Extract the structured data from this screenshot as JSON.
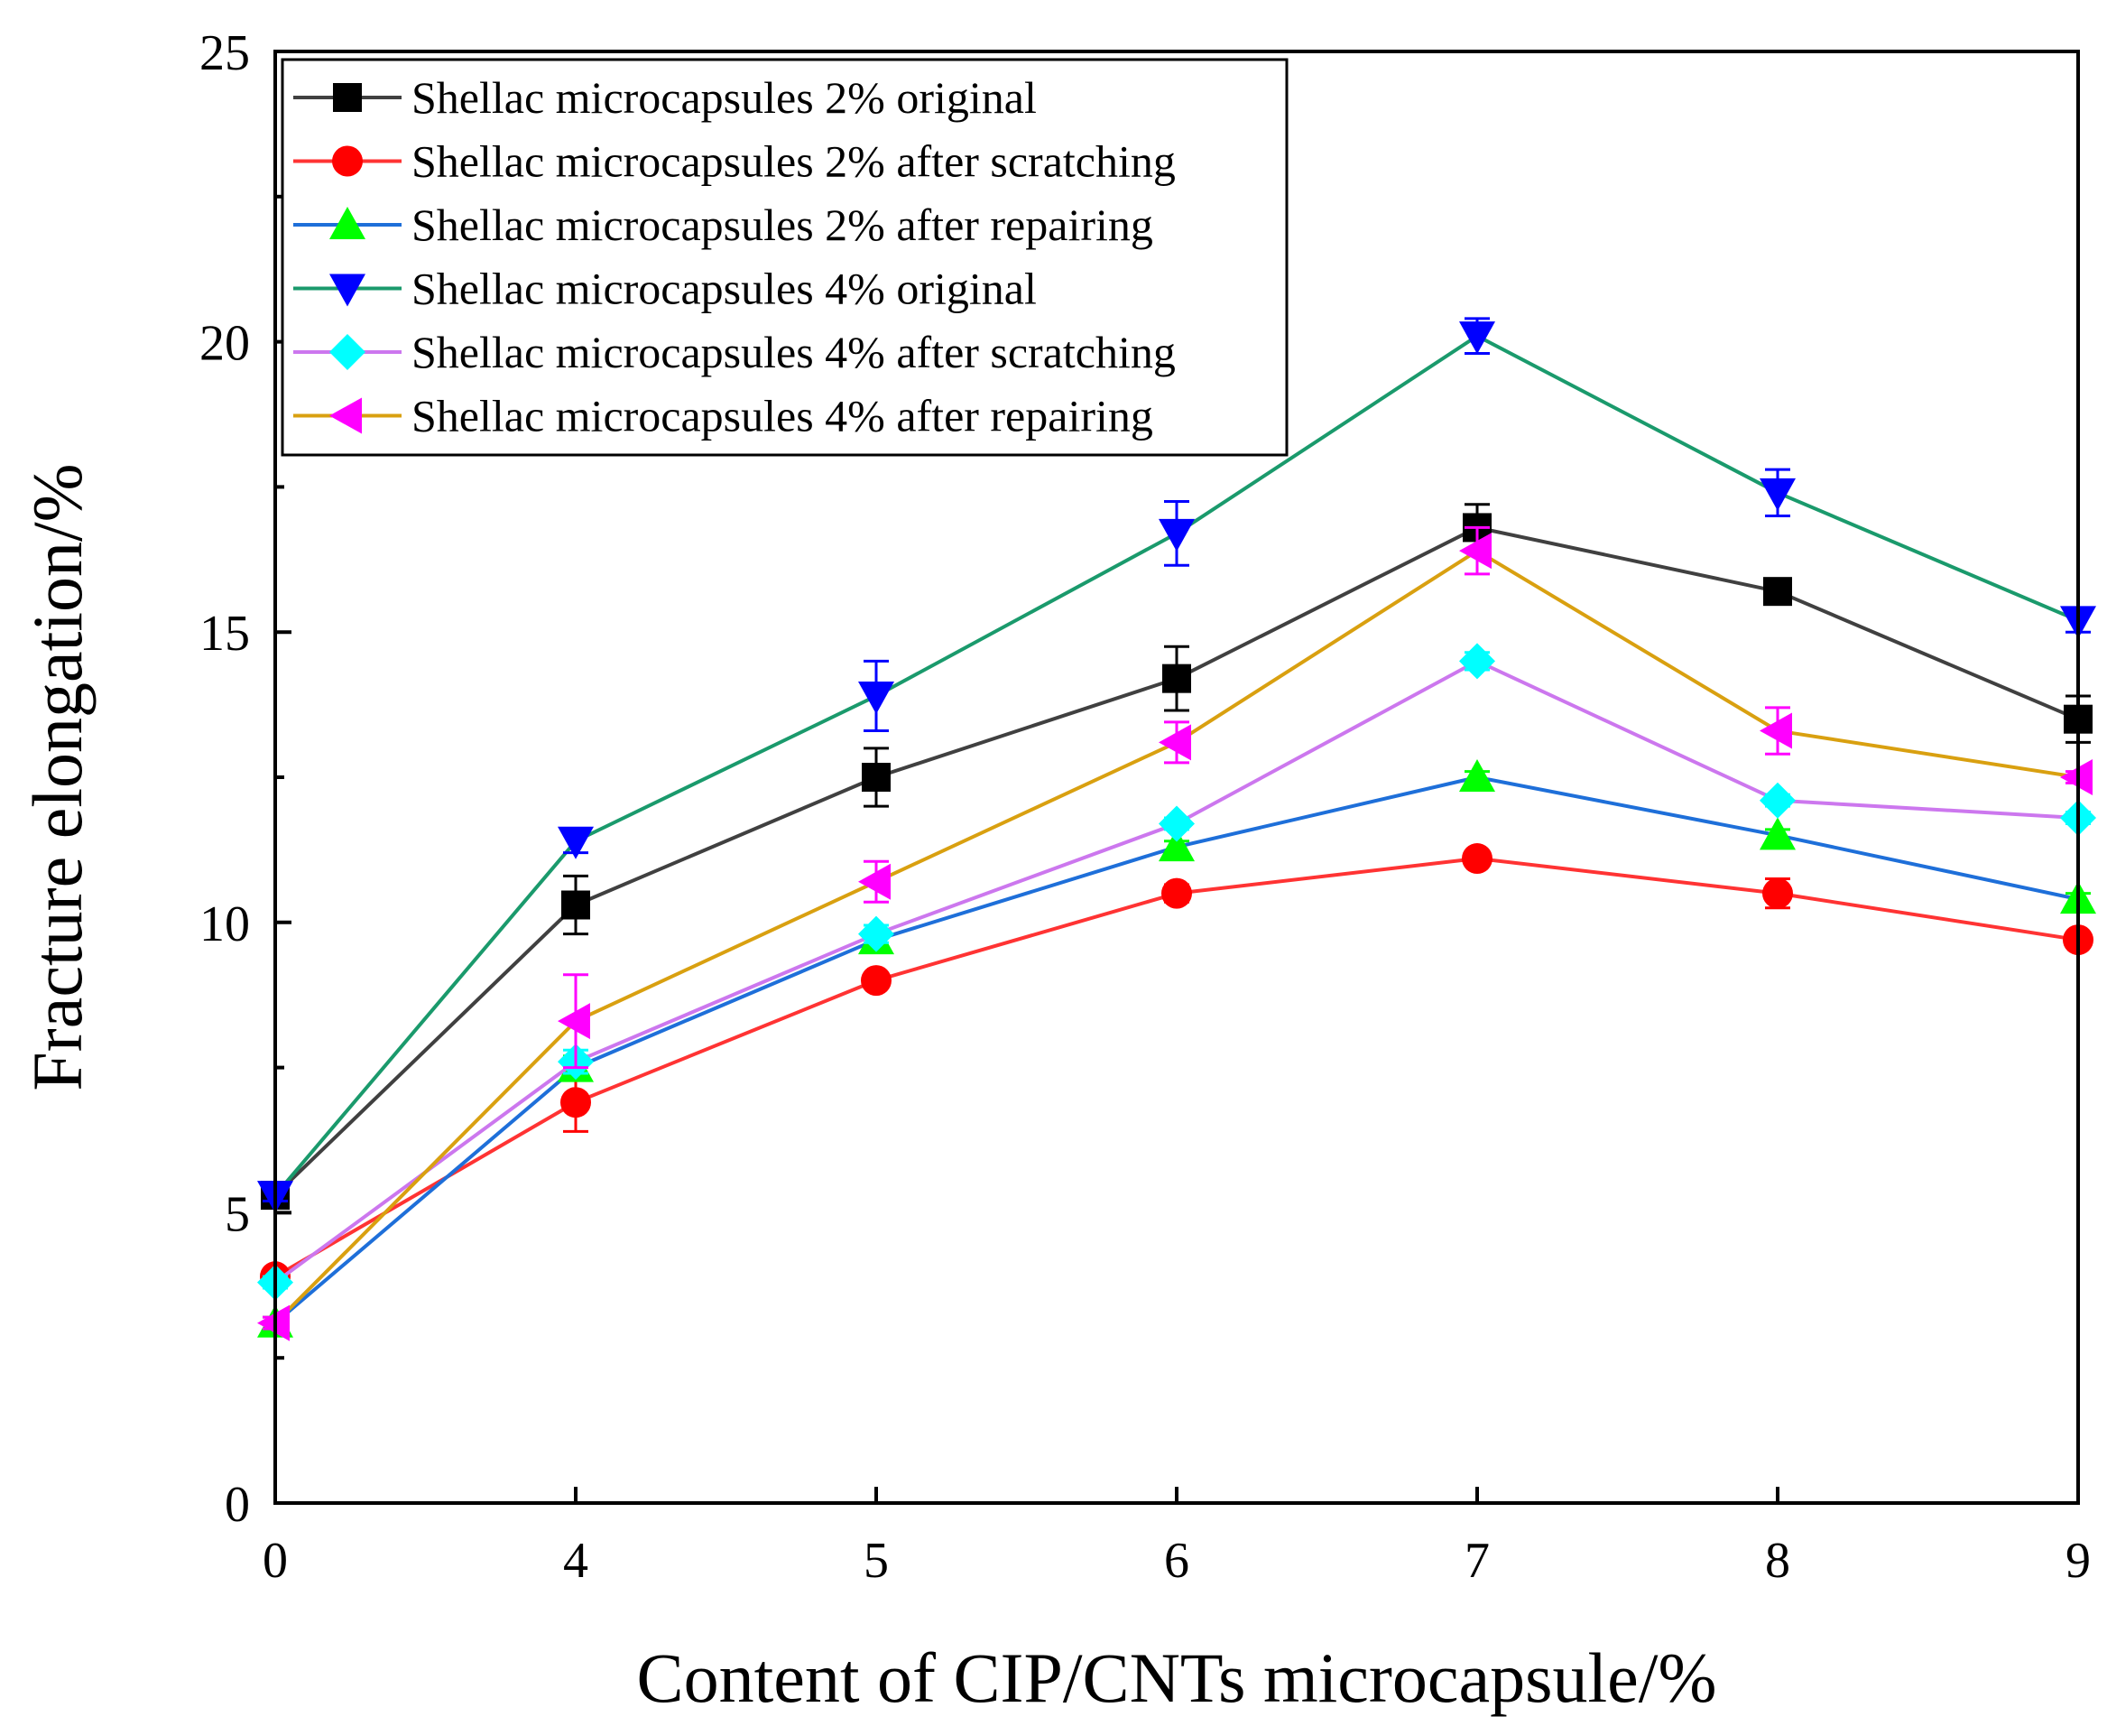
{
  "chart_data": {
    "type": "line",
    "title": "",
    "xlabel": "Content of CIP/CNTs microcapsule/%",
    "ylabel": "Fracture elongation/%",
    "categories": [
      "0",
      "4",
      "5",
      "6",
      "7",
      "8",
      "9"
    ],
    "ylim": [
      0,
      25
    ],
    "yticks": [
      "0",
      "5",
      "10",
      "15",
      "20",
      "25"
    ],
    "grid": false,
    "legend_position": "top-left",
    "series": [
      {
        "name": "Shellac microcapsules 2% original",
        "color": "#404040",
        "marker": "square",
        "marker_color": "#000000",
        "values": [
          5.3,
          10.3,
          12.5,
          14.2,
          16.8,
          15.7,
          13.5
        ],
        "errors": [
          0.1,
          0.5,
          0.5,
          0.55,
          0.4,
          0.15,
          0.4
        ]
      },
      {
        "name": "Shellac microcapsules 2% after scratching",
        "color": "#ff3333",
        "marker": "circle",
        "marker_color": "#ff0000",
        "values": [
          3.9,
          6.9,
          9.0,
          10.5,
          11.1,
          10.5,
          9.7
        ],
        "errors": [
          0.1,
          0.5,
          0.1,
          0.15,
          0.1,
          0.25,
          0.1
        ]
      },
      {
        "name": "Shellac microcapsules 2% after repairing",
        "color": "#1e6fd9",
        "marker": "triangle-up",
        "marker_color": "#00ff00",
        "values": [
          3.1,
          7.5,
          9.7,
          11.3,
          12.5,
          11.5,
          10.4
        ],
        "errors": [
          0.1,
          0.2,
          0.1,
          0.1,
          0.1,
          0.1,
          0.1
        ]
      },
      {
        "name": "Shellac microcapsules 4% original",
        "color": "#1a9a6c",
        "marker": "triangle-down",
        "marker_color": "#0000ff",
        "values": [
          5.3,
          11.4,
          13.9,
          16.7,
          20.1,
          17.4,
          15.2
        ],
        "errors": [
          0.1,
          0.2,
          0.6,
          0.55,
          0.3,
          0.4,
          0.2
        ]
      },
      {
        "name": "Shellac microcapsules 4% after scratching",
        "color": "#cc77ee",
        "marker": "diamond",
        "marker_color": "#00ffff",
        "values": [
          3.8,
          7.6,
          9.8,
          11.7,
          14.5,
          12.1,
          11.8
        ],
        "errors": [
          0.1,
          0.2,
          0.15,
          0.1,
          0.15,
          0.1,
          0.1
        ]
      },
      {
        "name": "Shellac microcapsules 4% after repairing",
        "color": "#d9a010",
        "marker": "triangle-left",
        "marker_color": "#ff00ff",
        "values": [
          3.1,
          8.3,
          10.7,
          13.1,
          16.4,
          13.3,
          12.5
        ],
        "errors": [
          0.1,
          0.8,
          0.35,
          0.35,
          0.4,
          0.4,
          0.1
        ]
      }
    ]
  }
}
